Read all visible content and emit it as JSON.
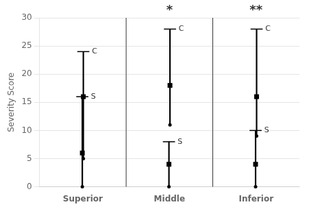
{
  "chart_data": {
    "type": "range",
    "categories": [
      "Superior",
      "Middle",
      "Inferior"
    ],
    "series": [
      {
        "name": "S",
        "color": "#000000",
        "median": [
          6,
          4,
          4
        ],
        "p75": [
          16,
          8,
          10
        ],
        "p25": [
          0,
          0,
          0
        ]
      },
      {
        "name": "C",
        "color": "#000000",
        "median": [
          16,
          18,
          16
        ],
        "p75": [
          24,
          28,
          28
        ],
        "p25": [
          5,
          11,
          9
        ]
      }
    ],
    "ylabel": "Severity Score",
    "ylim": [
      0,
      30
    ],
    "yticks": [
      0,
      5,
      10,
      15,
      20,
      25,
      30
    ],
    "grid": true,
    "annotations": [
      {
        "text": "*",
        "x": "Middle"
      },
      {
        "text": "**",
        "x": "Inferior"
      }
    ]
  }
}
